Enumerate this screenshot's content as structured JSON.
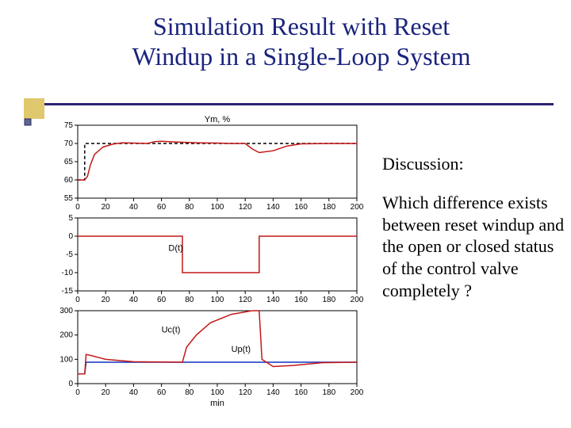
{
  "title_line1": "Simulation Result with Reset",
  "title_line2": "Windup in a Single-Loop System",
  "discussion_heading": "Discussion:",
  "discussion_body": "Which difference exists between reset windup and the open or closed status of the control valve completely ?",
  "xaxis_label": "min",
  "xlim": [
    0,
    200
  ],
  "xtick_step": 20,
  "chart1": {
    "title": "Ym, %",
    "ylim": [
      55,
      75
    ],
    "ytick_step": 5,
    "line_color": "#c21818",
    "dash_color": "#000000",
    "setpoint": {
      "x": [
        0,
        5,
        5,
        50,
        50,
        200
      ],
      "y": [
        60,
        60,
        70,
        70,
        70,
        70
      ]
    },
    "data": {
      "x": [
        0,
        5,
        7,
        9,
        12,
        18,
        25,
        32,
        40,
        50,
        52,
        55,
        60,
        70,
        85,
        100,
        110,
        120,
        125,
        130,
        140,
        150,
        160,
        180,
        200
      ],
      "y": [
        60,
        60,
        61,
        64,
        67,
        69,
        69.8,
        70.2,
        70.1,
        70,
        70.2,
        70.5,
        70.6,
        70.4,
        70.2,
        70.1,
        70,
        70,
        68.5,
        67.5,
        68,
        69.3,
        69.9,
        70,
        70
      ]
    }
  },
  "chart2": {
    "label": "D(t)",
    "ylim": [
      -15,
      5
    ],
    "yticks": [
      -15,
      -10,
      -5,
      0,
      5
    ],
    "line_color": "#c21818",
    "data": {
      "x": [
        0,
        75,
        75,
        130,
        130,
        200
      ],
      "y": [
        0,
        0,
        -10,
        -10,
        0,
        0
      ]
    }
  },
  "chart3": {
    "label_uc": "Uc(t)",
    "label_up": "Up(t)",
    "ylim": [
      0,
      300
    ],
    "ytick_step": 100,
    "uc_color": "#c21818",
    "up_color": "#1030c0",
    "data_uc": {
      "x": [
        0,
        5,
        6,
        10,
        20,
        40,
        75,
        78,
        85,
        95,
        110,
        125,
        130,
        132,
        140,
        155,
        175,
        200
      ],
      "y": [
        40,
        40,
        120,
        115,
        100,
        90,
        88,
        150,
        200,
        250,
        285,
        300,
        300,
        100,
        70,
        75,
        86,
        88
      ]
    },
    "data_up": {
      "x": [
        0,
        5,
        6,
        200
      ],
      "y": [
        40,
        40,
        88,
        88
      ]
    }
  },
  "colors": {
    "axis": "#000000",
    "frame": "#000000",
    "grid": "#000000"
  },
  "font": {
    "tick_size": 10,
    "label_size": 11
  }
}
